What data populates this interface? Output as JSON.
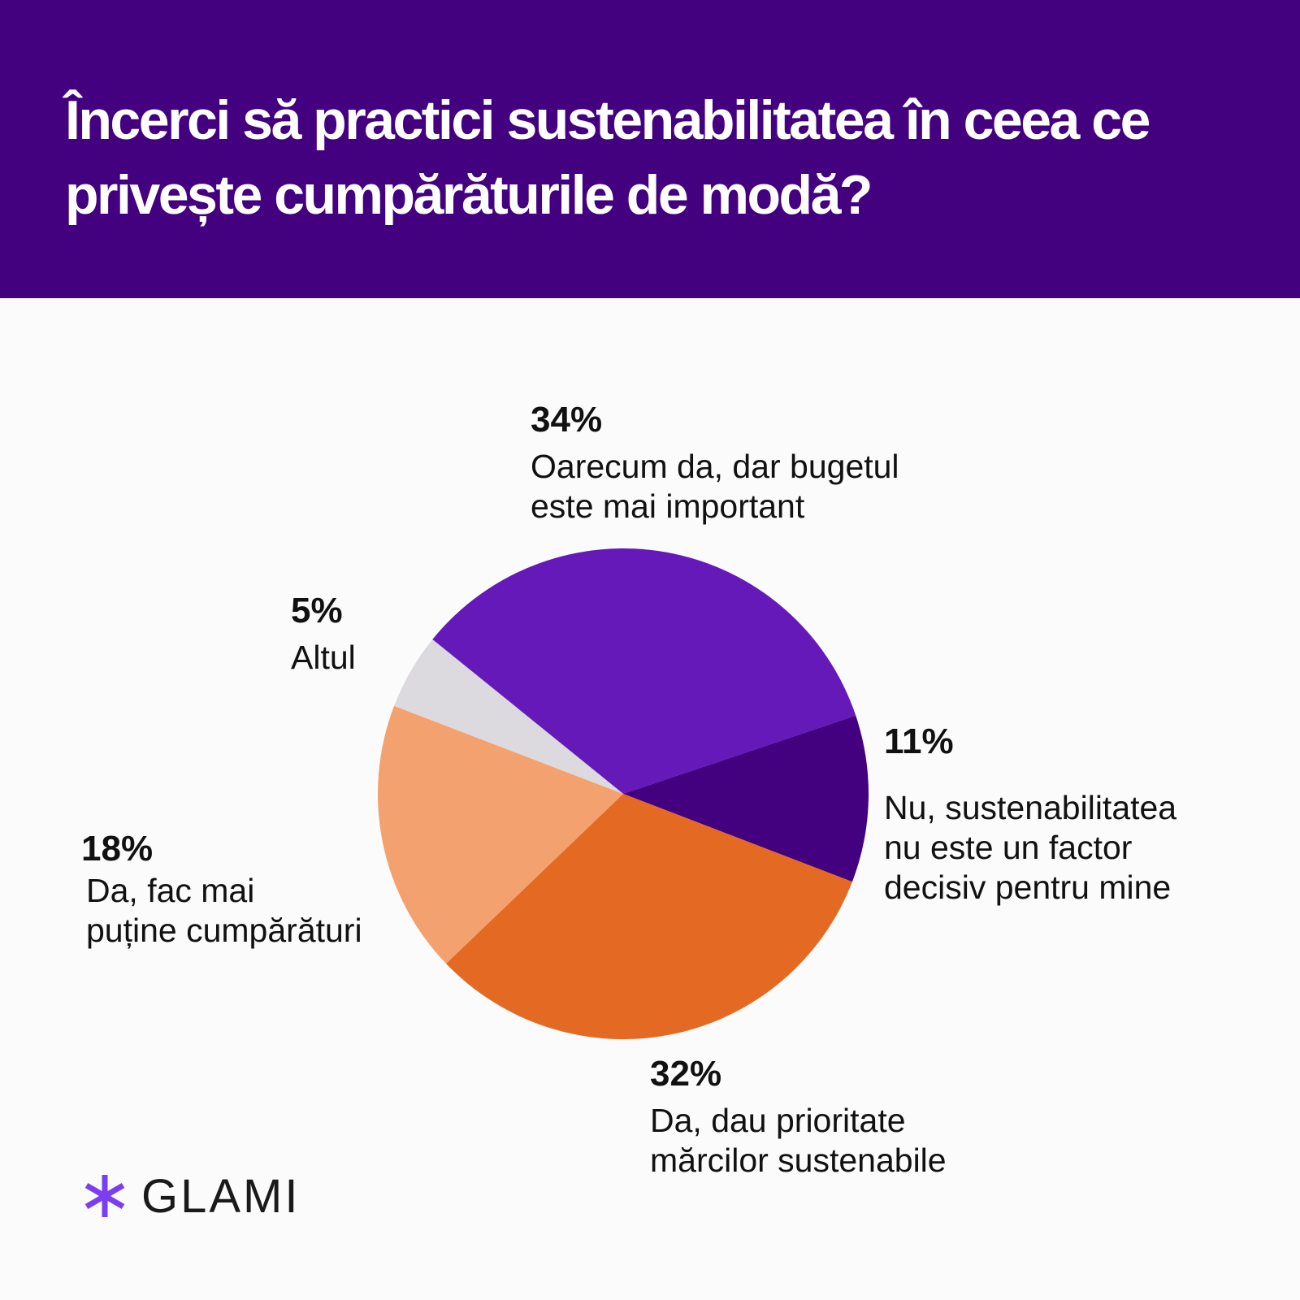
{
  "header": {
    "title": "Încerci să practici sustenabilitatea în ceea ce privește cumpărăturile de modă?",
    "background": "#430180"
  },
  "chart_data": {
    "type": "pie",
    "title": "Încerci să practici sustenabilitatea în ceea ce privește cumpărăturile de modă?",
    "slices": [
      {
        "label": "Oarecum da, dar bugetul este mai important",
        "value": 34,
        "display": "34%",
        "color": "#6419B8"
      },
      {
        "label": "Nu, sustenabilitatea nu este un factor decisiv pentru mine",
        "value": 11,
        "display": "11%",
        "color": "#430180"
      },
      {
        "label": "Da, dau prioritate mărcilor sustenabile",
        "value": 32,
        "display": "32%",
        "color": "#E46A24"
      },
      {
        "label": "Da, fac mai puține cumpărături",
        "value": 18,
        "display": "18%",
        "color": "#F3A16E"
      },
      {
        "label": "Altul",
        "value": 5,
        "display": "5%",
        "color": "#DCDADE"
      }
    ],
    "label_lines": [
      "Oarecum da, dar bugetul\neste mai important",
      "Nu, sustenabilitatea\nnu este un factor\ndecisiv pentru mine",
      "Da, dau prioritate\nmărcilor sustenabile",
      "Da, fac mai\npuține cumpărături",
      "Altul"
    ],
    "legend": "none"
  },
  "brand": {
    "name": "GLAMI",
    "icon": "asterisk-icon",
    "icon_color": "#7B3FF2"
  }
}
